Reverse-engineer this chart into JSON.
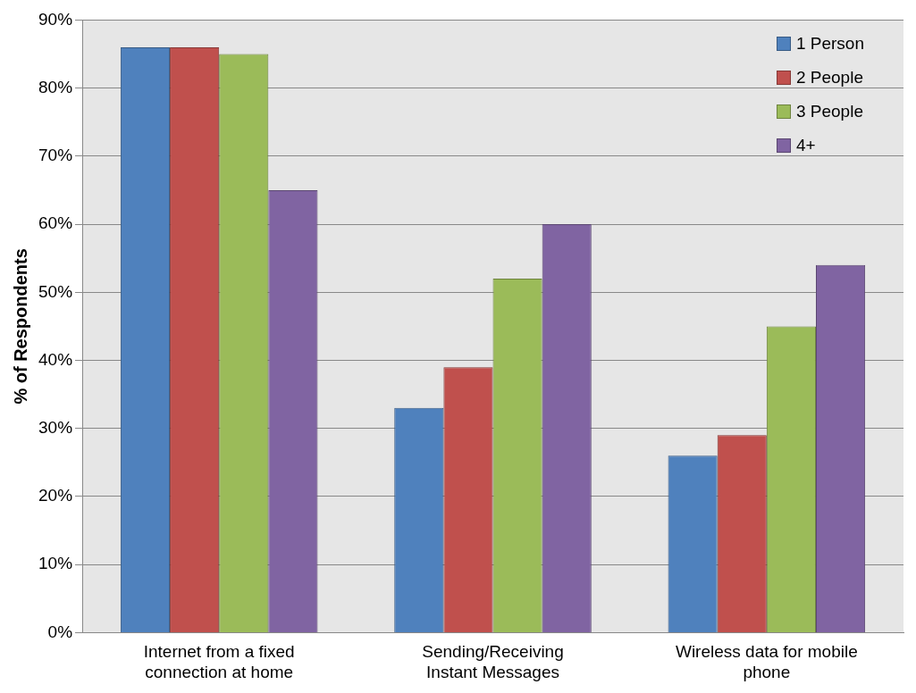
{
  "chart_data": {
    "type": "bar",
    "ylabel": "% of Respondents",
    "categories": [
      "Internet from a fixed connection at home",
      "Sending/Receiving Instant Messages",
      "Wireless data for mobile phone"
    ],
    "series": [
      {
        "name": "1 Person",
        "color": "#4f81bd",
        "values": [
          86,
          33,
          26
        ]
      },
      {
        "name": "2 People",
        "color": "#c0504d",
        "values": [
          86,
          39,
          29
        ]
      },
      {
        "name": "3 People",
        "color": "#9bbb59",
        "values": [
          85,
          52,
          45
        ]
      },
      {
        "name": "4+",
        "color": "#8064a2",
        "values": [
          65,
          60,
          54
        ]
      }
    ],
    "ylim": [
      0,
      90
    ],
    "yticks": [
      {
        "value": 0,
        "label": "0%"
      },
      {
        "value": 10,
        "label": "10%"
      },
      {
        "value": 20,
        "label": "20%"
      },
      {
        "value": 30,
        "label": "30%"
      },
      {
        "value": 40,
        "label": "40%"
      },
      {
        "value": 50,
        "label": "50%"
      },
      {
        "value": 60,
        "label": "60%"
      },
      {
        "value": 70,
        "label": "70%"
      },
      {
        "value": 80,
        "label": "80%"
      },
      {
        "value": 90,
        "label": "90%"
      }
    ],
    "grid": "y",
    "legend": "top right"
  }
}
